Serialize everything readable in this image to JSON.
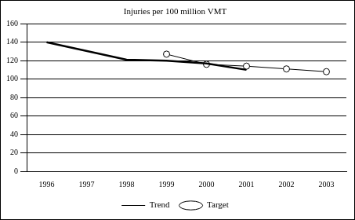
{
  "chart_data": {
    "type": "line",
    "title": "Injuries per 100 million VMT",
    "categories": [
      "1996",
      "1997",
      "1998",
      "1999",
      "2000",
      "2001",
      "2002",
      "2003"
    ],
    "series": [
      {
        "name": "Trend",
        "color": "#000000",
        "marker": "none",
        "line_style": "solid",
        "values": [
          140,
          null,
          121,
          120,
          117,
          110,
          null,
          null
        ]
      },
      {
        "name": "Target",
        "color": "#000000",
        "marker": "circle",
        "line_style": "solid",
        "values": [
          null,
          null,
          null,
          127,
          116,
          114,
          111,
          108
        ]
      }
    ],
    "ylim": [
      0,
      160
    ],
    "yticks": [
      0,
      20,
      40,
      60,
      80,
      100,
      120,
      140,
      160
    ],
    "grid": true,
    "legend": "bottom"
  }
}
